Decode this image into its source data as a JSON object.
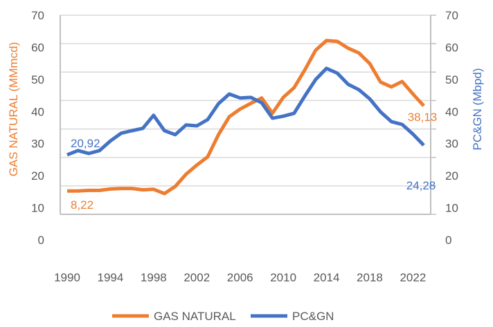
{
  "chart_data": {
    "type": "line",
    "title": "",
    "xlabel": "",
    "ylabel_left": "GAS NATURAL (MMmcd)",
    "ylabel_right": "PC&GN (Mbpd)",
    "ylim": [
      0,
      70
    ],
    "grid": true,
    "x": [
      1990,
      1991,
      1992,
      1993,
      1994,
      1995,
      1996,
      1997,
      1998,
      1999,
      2000,
      2001,
      2002,
      2003,
      2004,
      2005,
      2006,
      2007,
      2008,
      2009,
      2010,
      2011,
      2012,
      2013,
      2014,
      2015,
      2016,
      2017,
      2018,
      2019,
      2020,
      2021,
      2022,
      2023
    ],
    "x_tick_labels": [
      "1990",
      "1994",
      "1998",
      "2002",
      "2006",
      "2010",
      "2014",
      "2018",
      "2022"
    ],
    "y_left_tick_labels": [
      "0",
      "10",
      "20",
      "30",
      "40",
      "50",
      "60",
      "70"
    ],
    "y_right_tick_labels": [
      "0",
      "10",
      "20",
      "30",
      "40",
      "50",
      "60",
      "70"
    ],
    "series": [
      {
        "name": "GAS NATURAL",
        "axis": "left",
        "color": "#ED7D31",
        "values": [
          8.22,
          8.2,
          8.4,
          8.4,
          8.9,
          9.1,
          9.1,
          8.6,
          8.8,
          7.3,
          9.8,
          14.1,
          17.3,
          20.2,
          28.0,
          34.3,
          37.0,
          39.0,
          40.9,
          35.5,
          41.1,
          44.5,
          50.8,
          57.7,
          61.1,
          60.8,
          58.4,
          56.7,
          53.0,
          46.5,
          44.8,
          46.7,
          42.3,
          38.13
        ],
        "labels": [
          {
            "index": 0,
            "text": "8,22"
          },
          {
            "index": 33,
            "text": "38,13"
          }
        ]
      },
      {
        "name": "PC&GN",
        "axis": "right",
        "color": "#4472C4",
        "values": [
          20.92,
          22.4,
          21.4,
          22.4,
          25.8,
          28.5,
          29.4,
          30.2,
          34.8,
          29.4,
          28.0,
          31.4,
          31.1,
          33.3,
          38.9,
          42.3,
          40.9,
          41.1,
          39.2,
          33.8,
          34.5,
          35.5,
          41.6,
          47.4,
          51.3,
          49.6,
          45.7,
          43.8,
          40.6,
          36.0,
          32.6,
          31.6,
          28.2,
          24.28
        ],
        "labels": [
          {
            "index": 0,
            "text": "20,92"
          },
          {
            "index": 33,
            "text": "24,28"
          }
        ]
      }
    ],
    "legend": {
      "position": "bottom",
      "entries": [
        "GAS NATURAL",
        "PC&GN"
      ]
    }
  },
  "colors": {
    "grid": "#D9D9D9",
    "axis": "#BFBFBF",
    "tick_text": "#595959"
  }
}
